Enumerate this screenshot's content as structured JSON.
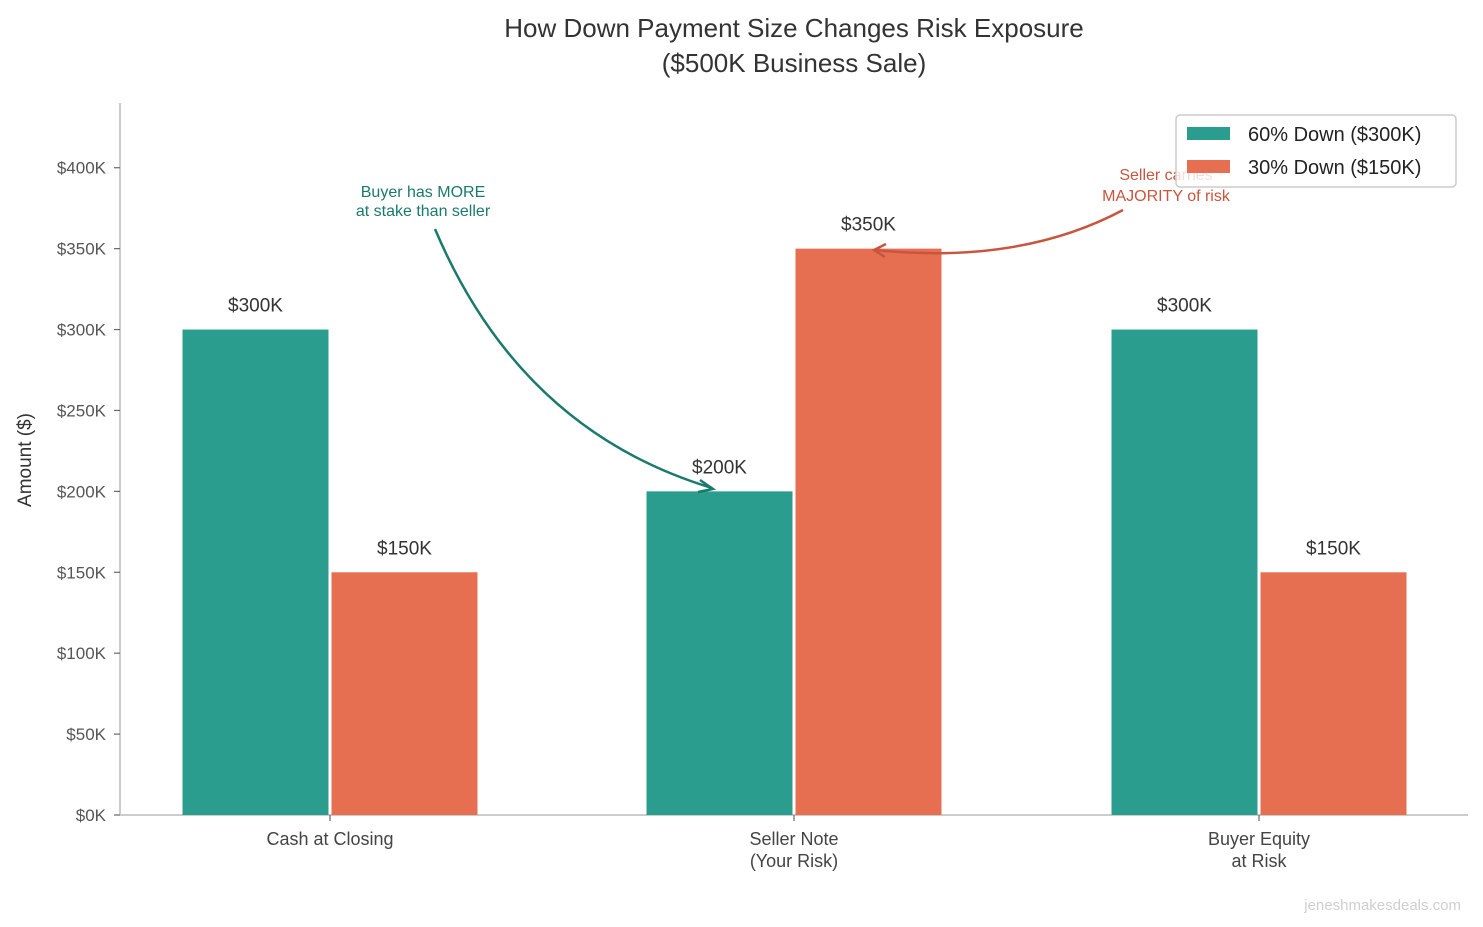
{
  "chart_data": {
    "type": "bar",
    "title": "How Down Payment Size Changes Risk Exposure",
    "subtitle": "($500K Business Sale)",
    "xlabel": "",
    "ylabel": "Amount ($)",
    "ylim": [
      0,
      440000
    ],
    "yticks": [
      0,
      50000,
      100000,
      150000,
      200000,
      250000,
      300000,
      350000,
      400000
    ],
    "ytick_labels": [
      "$0K",
      "$50K",
      "$100K",
      "$150K",
      "$200K",
      "$250K",
      "$300K",
      "$350K",
      "$400K"
    ],
    "categories": [
      [
        "Cash at Closing"
      ],
      [
        "Seller Note",
        "(Your Risk)"
      ],
      [
        "Buyer Equity",
        "at Risk"
      ]
    ],
    "series": [
      {
        "name": "60% Down ($300K)",
        "color": "#2a9d8f",
        "values": [
          300000,
          200000,
          300000
        ],
        "labels": [
          "$300K",
          "$200K",
          "$300K"
        ]
      },
      {
        "name": "30% Down ($150K)",
        "color": "#e76f51",
        "values": [
          150000,
          350000,
          150000
        ],
        "labels": [
          "$150K",
          "$350K",
          "$150K"
        ]
      }
    ],
    "legend_position": "top-right",
    "grid": false,
    "annotations": [
      {
        "text": [
          "Buyer has MORE",
          "at stake than seller"
        ],
        "color": "#1a7a6c",
        "points_to": "Seller Note, 60% Down"
      },
      {
        "text": [
          "Seller carries",
          "MAJORITY of risk"
        ],
        "color": "#c8553d",
        "points_to": "Seller Note, 30% Down"
      }
    ]
  },
  "watermark": "jeneshmakesdeals.com"
}
